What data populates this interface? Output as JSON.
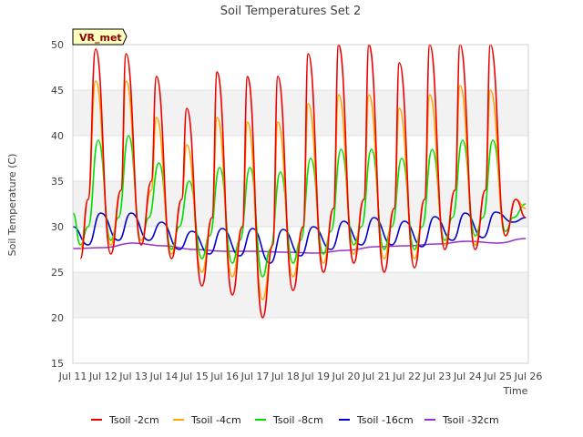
{
  "chart_data": {
    "type": "line",
    "title": "Soil Temperatures Set 2",
    "xlabel": "Time",
    "ylabel": "Soil Temperature (C)",
    "site_label": "VR_met",
    "xlim": [
      "Jul 11",
      "Jul 26"
    ],
    "ylim": [
      15,
      50
    ],
    "grid": "horizontal-bands",
    "legend_position": "bottom",
    "x_ticks": [
      "Jul 11",
      "Jul 12",
      "Jul 13",
      "Jul 14",
      "Jul 15",
      "Jul 16",
      "Jul 17",
      "Jul 18",
      "Jul 19",
      "Jul 20",
      "Jul 21",
      "Jul 22",
      "Jul 23",
      "Jul 24",
      "Jul 25",
      "Jul 26"
    ],
    "y_ticks": [
      15,
      20,
      25,
      30,
      35,
      40,
      45,
      50
    ],
    "series": [
      {
        "name": "Tsoil -2cm",
        "color": "#ee0000",
        "x": [
          "Jul 11 06:00",
          "Jul 11 12:00",
          "Jul 11 18:00",
          "Jul 12 06:00",
          "Jul 12 14:00",
          "Jul 12 18:00",
          "Jul 13 06:00",
          "Jul 13 14:00",
          "Jul 13 18:00",
          "Jul 14 06:00",
          "Jul 14 14:00",
          "Jul 14 18:00",
          "Jul 15 06:00",
          "Jul 15 14:00",
          "Jul 15 18:00",
          "Jul 16 06:00",
          "Jul 16 14:00",
          "Jul 16 18:00",
          "Jul 17 06:00",
          "Jul 17 14:00",
          "Jul 17 18:00",
          "Jul 18 06:00",
          "Jul 18 14:00",
          "Jul 18 18:00",
          "Jul 19 06:00",
          "Jul 19 14:00",
          "Jul 19 18:00",
          "Jul 20 06:00",
          "Jul 20 14:00",
          "Jul 20 18:00",
          "Jul 21 06:00",
          "Jul 21 14:00",
          "Jul 21 18:00",
          "Jul 22 06:00",
          "Jul 22 14:00",
          "Jul 22 18:00",
          "Jul 23 06:00",
          "Jul 23 14:00",
          "Jul 23 18:00",
          "Jul 24 06:00",
          "Jul 24 14:00",
          "Jul 24 18:00",
          "Jul 25 06:00",
          "Jul 25 14:00",
          "Jul 25 22:00"
        ],
        "values": [
          26.5,
          33,
          49.5,
          27,
          34,
          49,
          28,
          35,
          46.5,
          26.5,
          33,
          43,
          23.5,
          31,
          47,
          22.5,
          30,
          46.5,
          20,
          28,
          46.5,
          23,
          30,
          49,
          25,
          32,
          50,
          26,
          33,
          50,
          25,
          32,
          48,
          25.5,
          33,
          50,
          27.5,
          34,
          50,
          27.5,
          34,
          50,
          29,
          33,
          31
        ]
      },
      {
        "name": "Tsoil -4cm",
        "color": "#ffa500",
        "x": [
          "Jul 11 06:00",
          "Jul 11 12:00",
          "Jul 11 18:00",
          "Jul 12 06:00",
          "Jul 12 14:00",
          "Jul 12 18:00",
          "Jul 13 06:00",
          "Jul 13 14:00",
          "Jul 13 18:00",
          "Jul 14 06:00",
          "Jul 14 14:00",
          "Jul 14 18:00",
          "Jul 15 06:00",
          "Jul 15 14:00",
          "Jul 15 18:00",
          "Jul 16 06:00",
          "Jul 16 14:00",
          "Jul 16 18:00",
          "Jul 17 06:00",
          "Jul 17 14:00",
          "Jul 17 18:00",
          "Jul 18 06:00",
          "Jul 18 14:00",
          "Jul 18 18:00",
          "Jul 19 06:00",
          "Jul 19 14:00",
          "Jul 19 18:00",
          "Jul 20 06:00",
          "Jul 20 14:00",
          "Jul 20 18:00",
          "Jul 21 06:00",
          "Jul 21 14:00",
          "Jul 21 18:00",
          "Jul 22 06:00",
          "Jul 22 14:00",
          "Jul 22 18:00",
          "Jul 23 06:00",
          "Jul 23 14:00",
          "Jul 23 18:00",
          "Jul 24 06:00",
          "Jul 24 14:00",
          "Jul 24 18:00",
          "Jul 25 06:00",
          "Jul 25 14:00",
          "Jul 25 22:00"
        ],
        "values": [
          27.5,
          33,
          46,
          28,
          34,
          46,
          28.5,
          34,
          42,
          27,
          33,
          39,
          25,
          31,
          42,
          24.5,
          30,
          41.5,
          22,
          28,
          41.5,
          24.5,
          30,
          43.5,
          26,
          32,
          44.5,
          27,
          33,
          44.5,
          26.5,
          32,
          43,
          26.5,
          33,
          44.5,
          28,
          34,
          45.5,
          28,
          34,
          45,
          29,
          33,
          32
        ]
      },
      {
        "name": "Tsoil -8cm",
        "color": "#00dd00",
        "x": [
          "Jul 11 00:00",
          "Jul 11 06:00",
          "Jul 11 12:00",
          "Jul 11 20:00",
          "Jul 12 06:00",
          "Jul 12 12:00",
          "Jul 12 20:00",
          "Jul 13 06:00",
          "Jul 13 12:00",
          "Jul 13 20:00",
          "Jul 14 06:00",
          "Jul 14 12:00",
          "Jul 14 20:00",
          "Jul 15 06:00",
          "Jul 15 12:00",
          "Jul 15 20:00",
          "Jul 16 06:00",
          "Jul 16 12:00",
          "Jul 16 20:00",
          "Jul 17 06:00",
          "Jul 17 12:00",
          "Jul 17 20:00",
          "Jul 18 06:00",
          "Jul 18 12:00",
          "Jul 18 20:00",
          "Jul 19 06:00",
          "Jul 19 12:00",
          "Jul 19 20:00",
          "Jul 20 06:00",
          "Jul 20 12:00",
          "Jul 20 20:00",
          "Jul 21 06:00",
          "Jul 21 12:00",
          "Jul 21 20:00",
          "Jul 22 06:00",
          "Jul 22 12:00",
          "Jul 22 20:00",
          "Jul 23 06:00",
          "Jul 23 12:00",
          "Jul 23 20:00",
          "Jul 24 06:00",
          "Jul 24 12:00",
          "Jul 24 20:00",
          "Jul 25 06:00",
          "Jul 25 12:00",
          "Jul 25 22:00"
        ],
        "values": [
          31.5,
          28,
          30,
          39.5,
          28.5,
          31,
          40,
          28.5,
          31,
          37,
          27.5,
          30,
          35,
          26.5,
          29,
          36.5,
          26,
          28.5,
          36.5,
          24.5,
          27.5,
          36,
          26,
          28.5,
          37.5,
          27,
          29.5,
          38.5,
          28,
          30,
          38.5,
          27.5,
          30,
          37.5,
          27.5,
          30,
          38.5,
          28.5,
          31,
          39.5,
          29,
          31,
          39.5,
          29.5,
          31,
          32.5
        ]
      },
      {
        "name": "Tsoil -16cm",
        "color": "#0000cc",
        "x": [
          "Jul 11 00:00",
          "Jul 11 12:00",
          "Jul 11 22:00",
          "Jul 12 12:00",
          "Jul 12 22:00",
          "Jul 13 12:00",
          "Jul 13 22:00",
          "Jul 14 12:00",
          "Jul 14 22:00",
          "Jul 15 12:00",
          "Jul 15 22:00",
          "Jul 16 12:00",
          "Jul 16 22:00",
          "Jul 17 12:00",
          "Jul 17 22:00",
          "Jul 18 12:00",
          "Jul 18 22:00",
          "Jul 19 12:00",
          "Jul 19 22:00",
          "Jul 20 12:00",
          "Jul 20 22:00",
          "Jul 21 12:00",
          "Jul 21 22:00",
          "Jul 22 12:00",
          "Jul 22 22:00",
          "Jul 23 12:00",
          "Jul 23 22:00",
          "Jul 24 12:00",
          "Jul 24 22:00",
          "Jul 25 12:00",
          "Jul 25 22:00"
        ],
        "values": [
          30,
          28,
          31.5,
          28.5,
          31.5,
          28.5,
          30.5,
          27.5,
          29.5,
          27,
          29.8,
          26.8,
          29.8,
          26,
          29.7,
          26.8,
          30,
          27.5,
          30.6,
          28,
          31,
          28,
          30.6,
          27.8,
          31.1,
          28.5,
          31.5,
          28.8,
          31.6,
          30.5,
          31
        ]
      },
      {
        "name": "Tsoil -32cm",
        "color": "#9933cc",
        "x": [
          "Jul 11 00:00",
          "Jul 12 00:00",
          "Jul 13 00:00",
          "Jul 14 00:00",
          "Jul 15 00:00",
          "Jul 16 00:00",
          "Jul 17 00:00",
          "Jul 18 00:00",
          "Jul 19 00:00",
          "Jul 20 00:00",
          "Jul 21 00:00",
          "Jul 22 00:00",
          "Jul 23 00:00",
          "Jul 24 00:00",
          "Jul 25 00:00",
          "Jul 25 22:00"
        ],
        "values": [
          27.6,
          27.7,
          28.2,
          27.9,
          27.5,
          27.3,
          27.3,
          27.2,
          27.1,
          27.4,
          27.8,
          27.9,
          28.1,
          28.4,
          28.2,
          28.7
        ]
      }
    ]
  }
}
